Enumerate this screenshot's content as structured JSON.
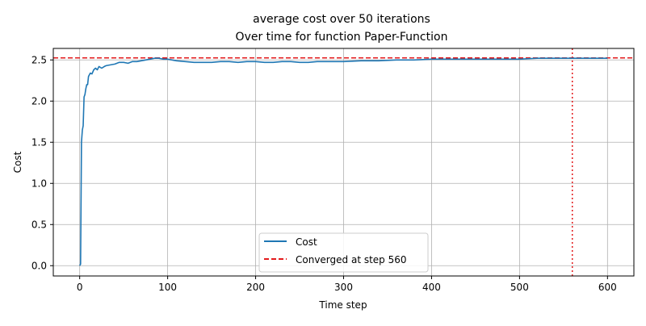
{
  "chart_data": {
    "type": "line",
    "title": "average cost over 50 iterations",
    "subtitle": "Over time for function Paper-Function",
    "xlabel": "Time step",
    "ylabel": "Cost",
    "xlim": [
      -30,
      630
    ],
    "ylim": [
      -0.125,
      2.64
    ],
    "xticks": [
      0,
      100,
      200,
      300,
      400,
      500,
      600
    ],
    "xtick_labels": [
      "0",
      "100",
      "200",
      "300",
      "400",
      "500",
      "600"
    ],
    "yticks": [
      0.0,
      0.5,
      1.0,
      1.5,
      2.0,
      2.5
    ],
    "ytick_labels": [
      "0.0",
      "0.5",
      "1.0",
      "1.5",
      "2.0",
      "2.5"
    ],
    "grid": true,
    "legend_position": "lower-center",
    "series": [
      {
        "name": "Cost",
        "color": "#1f77b4",
        "style": "solid",
        "x": [
          0,
          1,
          2,
          3,
          4,
          5,
          6,
          7,
          8,
          9,
          10,
          12,
          14,
          16,
          18,
          20,
          22,
          25,
          28,
          30,
          35,
          40,
          45,
          50,
          55,
          60,
          65,
          70,
          75,
          80,
          85,
          90,
          95,
          100,
          110,
          120,
          130,
          140,
          150,
          160,
          170,
          180,
          190,
          200,
          210,
          220,
          230,
          240,
          250,
          260,
          270,
          280,
          290,
          300,
          320,
          340,
          360,
          380,
          400,
          420,
          440,
          460,
          480,
          500,
          520,
          540,
          560,
          580,
          600
        ],
        "y": [
          0.0,
          0.02,
          1.5,
          1.65,
          1.7,
          2.05,
          2.08,
          2.15,
          2.2,
          2.2,
          2.3,
          2.34,
          2.33,
          2.38,
          2.4,
          2.38,
          2.42,
          2.4,
          2.42,
          2.43,
          2.44,
          2.45,
          2.47,
          2.47,
          2.46,
          2.48,
          2.48,
          2.49,
          2.5,
          2.51,
          2.52,
          2.52,
          2.51,
          2.51,
          2.49,
          2.48,
          2.47,
          2.47,
          2.47,
          2.48,
          2.48,
          2.47,
          2.48,
          2.48,
          2.47,
          2.47,
          2.48,
          2.48,
          2.47,
          2.47,
          2.48,
          2.48,
          2.48,
          2.48,
          2.49,
          2.49,
          2.5,
          2.5,
          2.51,
          2.51,
          2.51,
          2.51,
          2.51,
          2.51,
          2.52,
          2.52,
          2.52,
          2.52,
          2.52
        ]
      }
    ],
    "hline": {
      "name": "Converged at step 560",
      "y": 2.525,
      "color": "#e31a1c",
      "style": "dashed"
    },
    "vline": {
      "x": 560,
      "color": "#e31a1c",
      "style": "dotted"
    },
    "grid_color": "#b0b0b0"
  }
}
